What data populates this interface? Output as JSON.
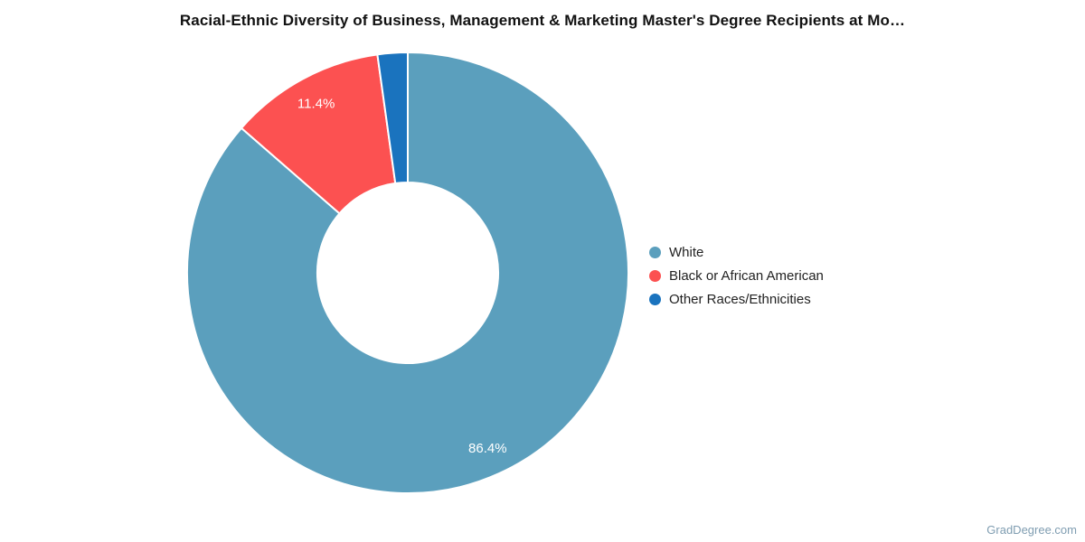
{
  "chart_data": {
    "type": "pie",
    "subtype": "donut",
    "title": "Racial-Ethnic Diversity of Business, Management & Marketing Master's Degree Recipients at Mo…",
    "slices": [
      {
        "label": "White",
        "value": 86.4,
        "display": "86.4%",
        "color": "#5B9FBD",
        "show_label": true
      },
      {
        "label": "Black or African American",
        "value": 11.4,
        "display": "11.4%",
        "color": "#FC5151",
        "show_label": true
      },
      {
        "label": "Other Races/Ethnicities",
        "value": 2.2,
        "display": "2.2%",
        "color": "#1A73BE",
        "show_label": false
      }
    ],
    "start_angle_deg": 0,
    "direction": "clockwise",
    "donut_hole_ratio": 0.41,
    "legend_position": "right",
    "data_label_color": "#ffffff",
    "background": "#ffffff"
  },
  "watermark": {
    "text": "GradDegree.com"
  }
}
